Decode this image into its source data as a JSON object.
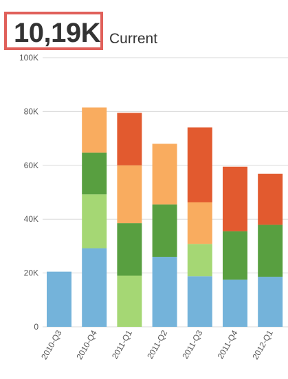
{
  "kpi": {
    "value": "10,19K",
    "label": "Current"
  },
  "colors": {
    "blue": "#74b3da",
    "light_green": "#a5d774",
    "dark_green": "#589f40",
    "light_orange": "#f9ac5f",
    "dark_orange": "#e25a2f",
    "highlight_border": "#e0605a"
  },
  "chart_data": {
    "type": "bar",
    "stacked": true,
    "categories": [
      "2010-Q3",
      "2010-Q4",
      "2011-Q1",
      "2011-Q2",
      "2011-Q3",
      "2011-Q4",
      "2012-Q1"
    ],
    "series": [
      {
        "color": "blue",
        "values": [
          20500,
          29200,
          0,
          26000,
          18800,
          17500,
          18600
        ]
      },
      {
        "color": "light_green",
        "values": [
          0,
          20000,
          19000,
          0,
          12000,
          0,
          0
        ]
      },
      {
        "color": "dark_green",
        "values": [
          0,
          15500,
          19500,
          19500,
          0,
          18000,
          19300
        ]
      },
      {
        "color": "light_orange",
        "values": [
          0,
          16800,
          21500,
          22500,
          15500,
          0,
          0
        ]
      },
      {
        "color": "dark_orange",
        "values": [
          0,
          0,
          19500,
          0,
          27800,
          24000,
          19000
        ]
      }
    ],
    "yticks": [
      0,
      20000,
      40000,
      60000,
      80000,
      100000
    ],
    "ytick_labels": [
      "0",
      "20K",
      "40K",
      "60K",
      "80K",
      "100K"
    ],
    "ylim": [
      0,
      100000
    ],
    "grid": true
  }
}
